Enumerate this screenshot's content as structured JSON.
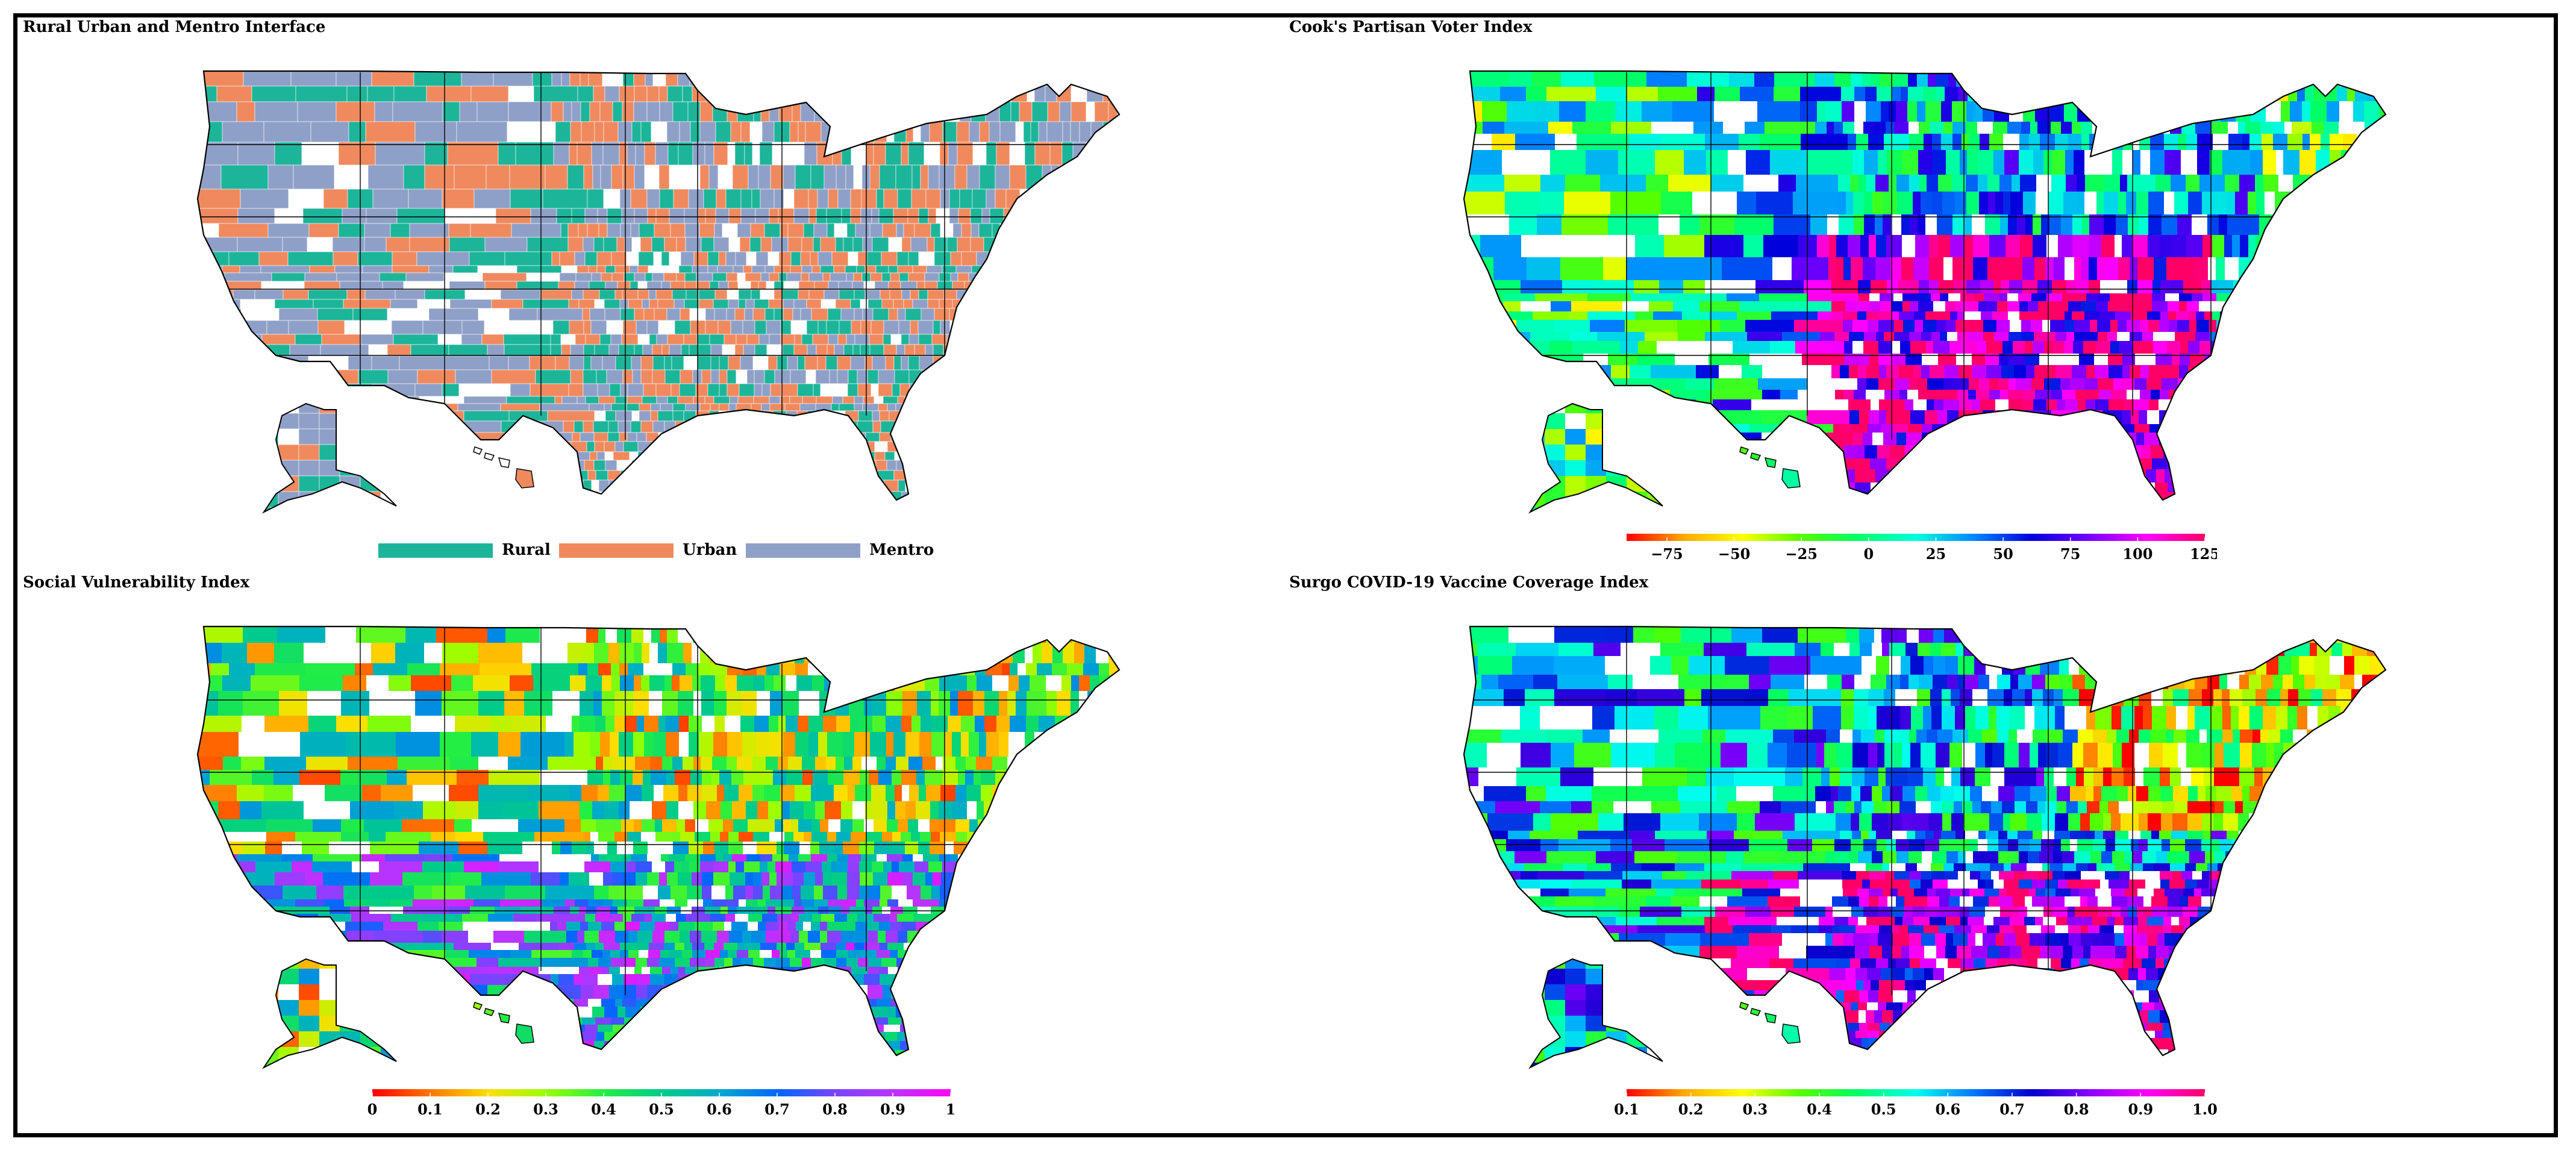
{
  "panels": [
    {
      "title": "Rural Urban and Mentro Interface",
      "legend_type": "categorical",
      "categories": [
        {
          "label": "Rural",
          "color": "#1db59a"
        },
        {
          "label": "Urban",
          "color": "#f08a5e"
        },
        {
          "label": "Mentro",
          "color": "#8fa0c8"
        }
      ]
    },
    {
      "title": "Cook's Partisan Voter Index",
      "legend_type": "continuous",
      "range": [
        -90,
        125
      ],
      "ticks": [
        "−75",
        "−50",
        "−25",
        "0",
        "25",
        "50",
        "75",
        "100",
        "125"
      ],
      "tick_values": [
        -75,
        -50,
        -25,
        0,
        25,
        50,
        75,
        100,
        125
      ],
      "colors": [
        "#ff0000",
        "#ffaa00",
        "#ffff00",
        "#55ff00",
        "#00ff66",
        "#00ffdd",
        "#0088ff",
        "#0000dd",
        "#7700ff",
        "#ff00ff",
        "#ff0066"
      ]
    },
    {
      "title": "Social Vulnerability Index",
      "legend_type": "continuous",
      "range": [
        0,
        1
      ],
      "ticks": [
        "0",
        "0.1",
        "0.2",
        "0.3",
        "0.4",
        "0.5",
        "0.6",
        "0.7",
        "0.8",
        "0.9",
        "1"
      ],
      "tick_values": [
        0,
        0.1,
        0.2,
        0.3,
        0.4,
        0.5,
        0.6,
        0.7,
        0.8,
        0.9,
        1
      ],
      "colors": [
        "#ff0000",
        "#ff7700",
        "#ffdd00",
        "#99ff00",
        "#22ee44",
        "#00cc88",
        "#00aacc",
        "#0066ff",
        "#7744ff",
        "#bb33ff",
        "#ff00ff"
      ]
    },
    {
      "title": "Surgo COVID-19 Vaccine Coverage Index",
      "legend_type": "continuous",
      "range": [
        0.1,
        1.0
      ],
      "ticks": [
        "0.1",
        "0.2",
        "0.3",
        "0.4",
        "0.5",
        "0.6",
        "0.7",
        "0.8",
        "0.9",
        "1.0"
      ],
      "tick_values": [
        0.1,
        0.2,
        0.3,
        0.4,
        0.5,
        0.6,
        0.7,
        0.8,
        0.9,
        1.0
      ],
      "colors": [
        "#ff0000",
        "#ffaa00",
        "#ffff00",
        "#55ff00",
        "#00ff66",
        "#00ffee",
        "#0077ff",
        "#0000cc",
        "#8800ff",
        "#ff00ff",
        "#ff0066"
      ]
    }
  ]
}
